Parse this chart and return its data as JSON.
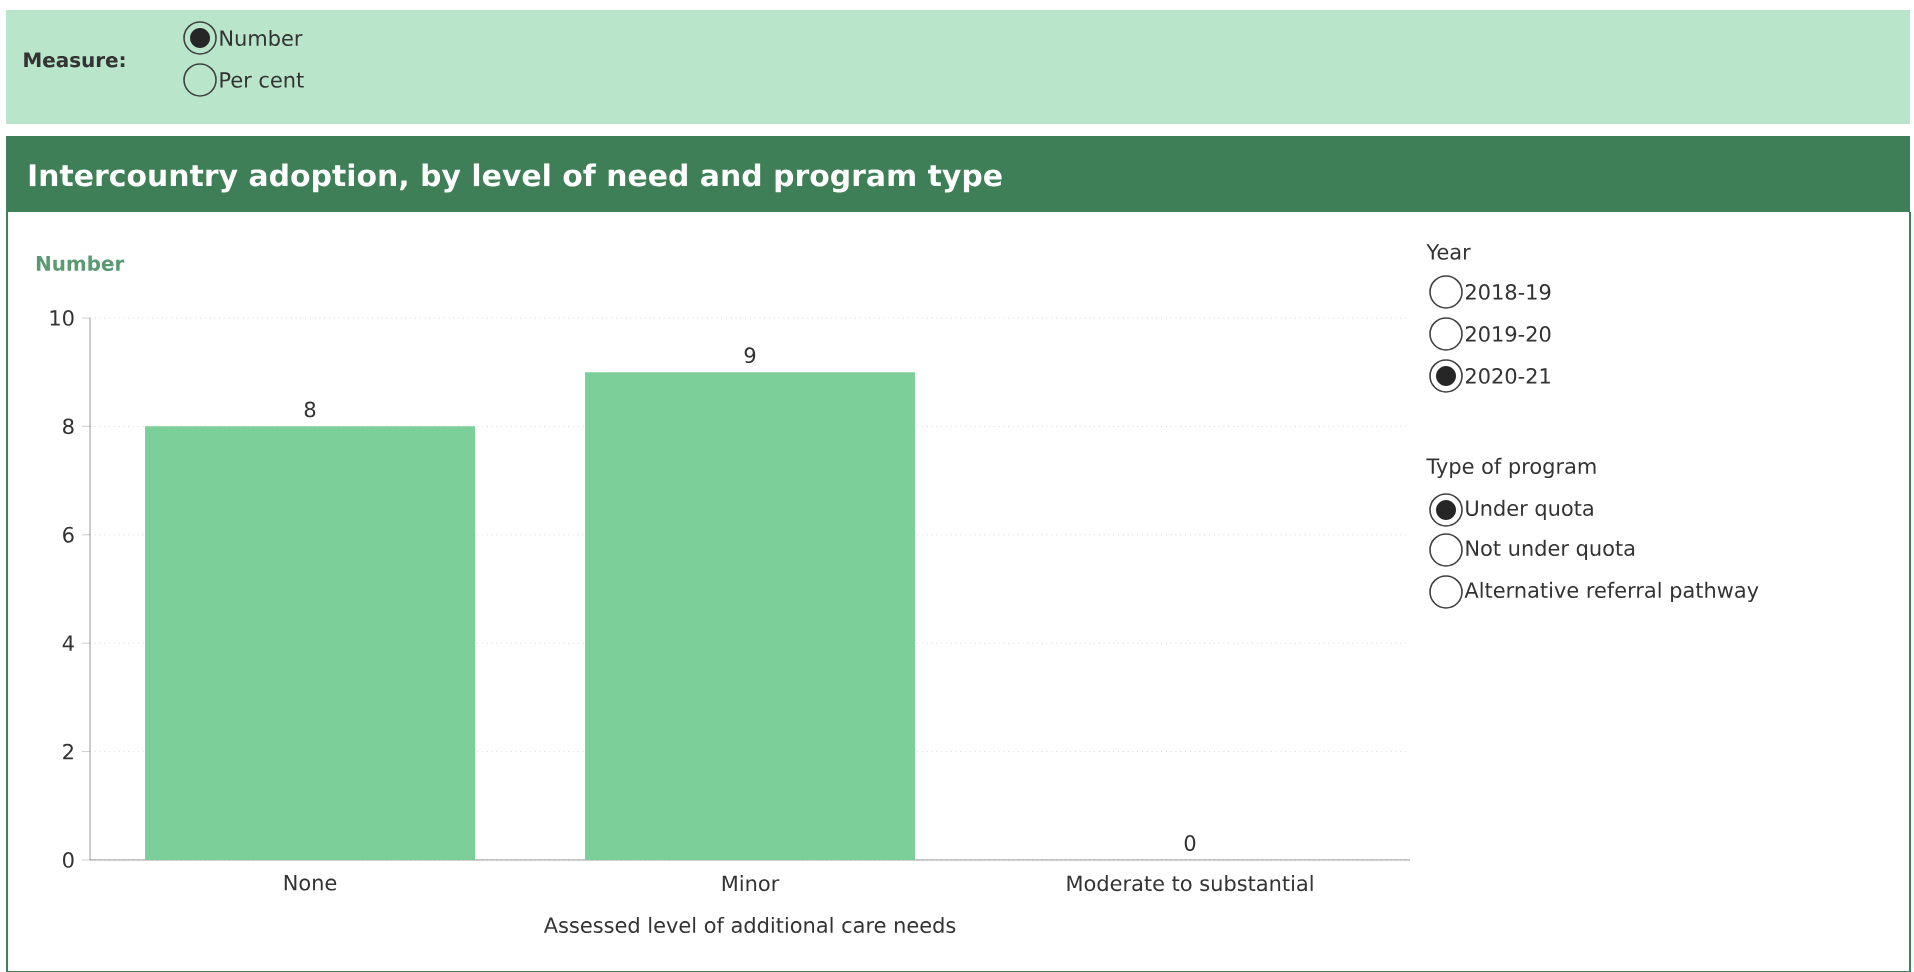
{
  "chart_data": {
    "type": "bar",
    "title": "Intercountry adoption, by level of need and program type",
    "ylabel": "Number",
    "xlabel": "Assessed level of additional care needs",
    "categories": [
      "None",
      "Minor",
      "Moderate to substantial"
    ],
    "values": [
      8,
      9,
      0
    ],
    "color": "#7dcf9a",
    "data_labels": true,
    "ylim": [
      0,
      10
    ],
    "yticks": [
      0,
      2,
      4,
      6,
      8,
      10
    ],
    "grid": "y",
    "annotations": [
      "Measure:",
      "Number",
      "Per cent",
      "Year",
      "2018-19",
      "2019-20",
      "2020-21",
      "Type of program",
      "Under quota",
      "Not under quota",
      "Alternative referral pathway"
    ]
  }
}
